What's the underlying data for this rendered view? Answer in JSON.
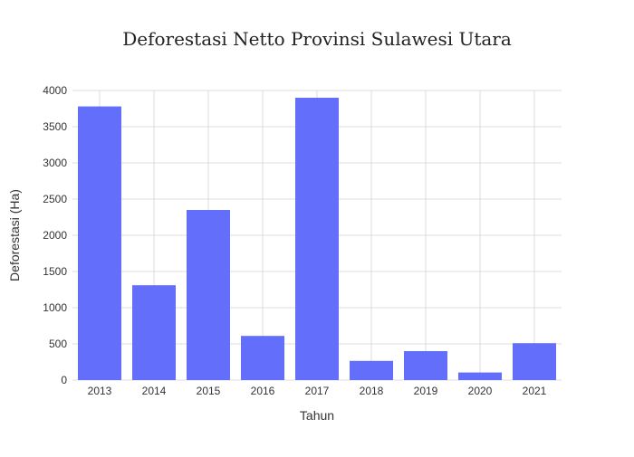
{
  "chart_data": {
    "type": "bar",
    "title": "Deforestasi Netto Provinsi Sulawesi Utara",
    "xlabel": "Tahun",
    "ylabel": "Deforestasi (Ha)",
    "categories": [
      "2013",
      "2014",
      "2015",
      "2016",
      "2017",
      "2018",
      "2019",
      "2020",
      "2021"
    ],
    "values": [
      3780,
      1310,
      2350,
      610,
      3900,
      265,
      400,
      105,
      510
    ],
    "ylim": [
      0,
      4000
    ],
    "yticks": [
      0,
      500,
      1000,
      1500,
      2000,
      2500,
      3000,
      3500,
      4000
    ],
    "grid": true,
    "legend": "none",
    "bar_color": "#636efa"
  }
}
